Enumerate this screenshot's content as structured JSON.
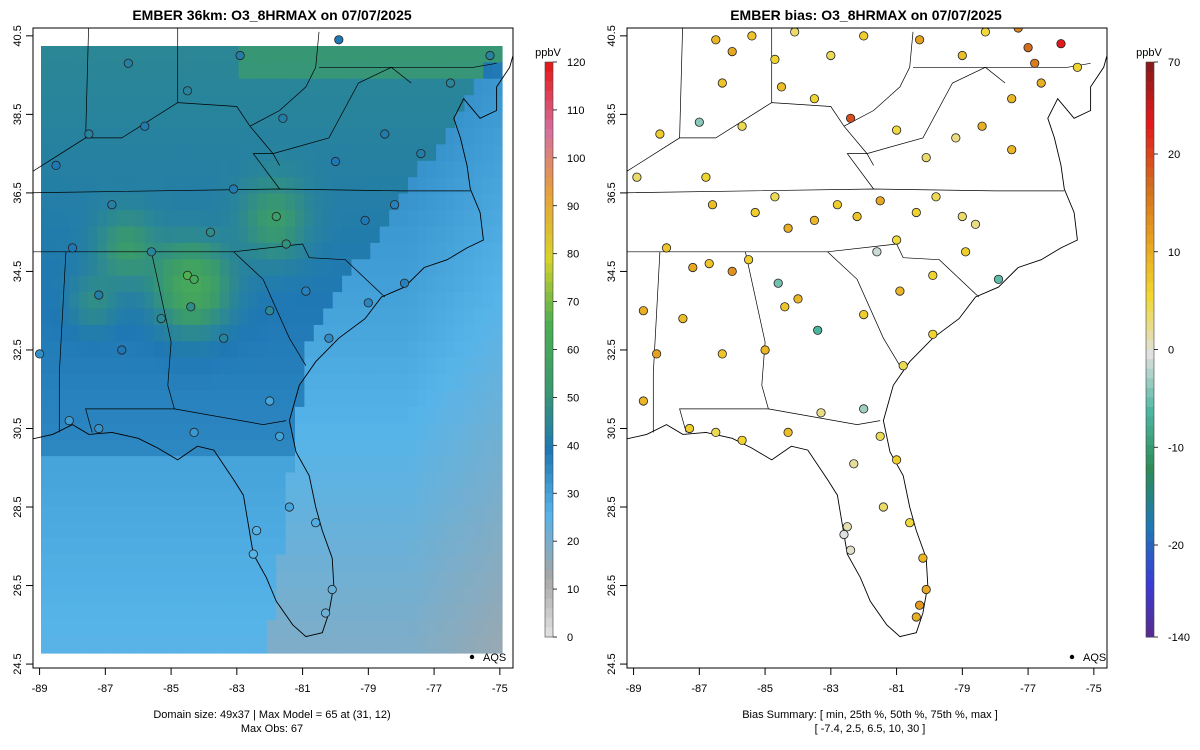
{
  "left_panel": {
    "title": "EMBER 36km: O3_8HRMAX on 07/07/2025",
    "colorbar_unit": "ppbV",
    "colorbar_ticks": [
      "0",
      "10",
      "20",
      "30",
      "40",
      "50",
      "60",
      "70",
      "80",
      "90",
      "100",
      "110",
      "120"
    ],
    "legend_label": "AQS",
    "footer_line1": "Domain size: 49x37 | Max Model = 65 at (31, 12)",
    "footer_line2": "Max Obs: 67"
  },
  "right_panel": {
    "title": "EMBER bias: O3_8HRMAX on 07/07/2025",
    "colorbar_unit": "ppbV",
    "colorbar_ticks": [
      "-140",
      "-20",
      "-10",
      "0",
      "10",
      "20",
      "70"
    ],
    "legend_label": "AQS",
    "footer_line1": "Bias Summary: [ min, 25th %, 50th %, 75th %, max ]",
    "footer_line2": "[ -7.4,   2.5,   6.5,   10,   30 ]"
  },
  "chart_data": [
    {
      "type": "heatmap",
      "title": "EMBER 36km: O3_8HRMAX on 07/07/2025",
      "x_ticks": [
        "-89",
        "-87",
        "-85",
        "-83",
        "-81",
        "-79",
        "-77",
        "-75"
      ],
      "y_ticks": [
        "24.5",
        "26.5",
        "28.5",
        "30.5",
        "32.5",
        "34.5",
        "36.5",
        "38.5",
        "40.5"
      ],
      "xlim": [
        -89.2,
        -74.6
      ],
      "ylim": [
        24.4,
        40.7
      ],
      "colorbar_range": [
        0,
        120
      ],
      "grid": false,
      "legend_position": "bottom-right",
      "colors": {
        "scale": [
          "#e8e8e8",
          "#a6a6a6",
          "#56b4e9",
          "#1f78b4",
          "#3a9b6c",
          "#4caf50",
          "#d6d22a",
          "#e8a23a",
          "#d66f9f",
          "#e31a1c"
        ],
        "ocean": "#5aa3d8"
      },
      "stations": [
        {
          "lon": -84.5,
          "lat": 34.4,
          "value": 67
        },
        {
          "lon": -84.3,
          "lat": 34.3,
          "value": 62
        },
        {
          "lon": -81.8,
          "lat": 35.9,
          "value": 55
        },
        {
          "lon": -81.5,
          "lat": 35.2,
          "value": 50
        },
        {
          "lon": -83.8,
          "lat": 35.5,
          "value": 48
        },
        {
          "lon": -85.6,
          "lat": 35.0,
          "value": 45
        },
        {
          "lon": -87.2,
          "lat": 33.9,
          "value": 42
        },
        {
          "lon": -84.4,
          "lat": 33.6,
          "value": 48
        },
        {
          "lon": -86.5,
          "lat": 32.5,
          "value": 40
        },
        {
          "lon": -80.9,
          "lat": 34.0,
          "value": 38
        },
        {
          "lon": -79.1,
          "lat": 35.8,
          "value": 40
        },
        {
          "lon": -78.2,
          "lat": 36.2,
          "value": 38
        },
        {
          "lon": -77.4,
          "lat": 37.5,
          "value": 42
        },
        {
          "lon": -76.5,
          "lat": 39.3,
          "value": 45
        },
        {
          "lon": -75.3,
          "lat": 40.0,
          "value": 44
        },
        {
          "lon": -79.9,
          "lat": 40.4,
          "value": 40
        },
        {
          "lon": -82.9,
          "lat": 40.0,
          "value": 42
        },
        {
          "lon": -84.5,
          "lat": 39.1,
          "value": 44
        },
        {
          "lon": -85.8,
          "lat": 38.2,
          "value": 41
        },
        {
          "lon": -86.8,
          "lat": 36.2,
          "value": 43
        },
        {
          "lon": -88.0,
          "lat": 35.1,
          "value": 40
        },
        {
          "lon": -89.0,
          "lat": 32.4,
          "value": 35
        },
        {
          "lon": -88.1,
          "lat": 30.7,
          "value": 32
        },
        {
          "lon": -87.2,
          "lat": 30.5,
          "value": 34
        },
        {
          "lon": -84.3,
          "lat": 30.4,
          "value": 33
        },
        {
          "lon": -82.0,
          "lat": 31.2,
          "value": 30
        },
        {
          "lon": -81.7,
          "lat": 30.3,
          "value": 31
        },
        {
          "lon": -81.4,
          "lat": 28.5,
          "value": 30
        },
        {
          "lon": -80.6,
          "lat": 28.1,
          "value": 28
        },
        {
          "lon": -82.4,
          "lat": 27.9,
          "value": 27
        },
        {
          "lon": -82.5,
          "lat": 27.3,
          "value": 26
        },
        {
          "lon": -80.1,
          "lat": 26.4,
          "value": 24
        },
        {
          "lon": -80.3,
          "lat": 25.8,
          "value": 23
        },
        {
          "lon": -80.2,
          "lat": 32.8,
          "value": 36
        },
        {
          "lon": -79.0,
          "lat": 33.7,
          "value": 37
        },
        {
          "lon": -77.9,
          "lat": 34.2,
          "value": 38
        },
        {
          "lon": -86.3,
          "lat": 39.8,
          "value": 43
        },
        {
          "lon": -88.5,
          "lat": 37.2,
          "value": 40
        },
        {
          "lon": -87.5,
          "lat": 38.0,
          "value": 44
        },
        {
          "lon": -81.6,
          "lat": 38.4,
          "value": 42
        },
        {
          "lon": -80.0,
          "lat": 37.3,
          "value": 40
        },
        {
          "lon": -78.5,
          "lat": 38.0,
          "value": 41
        },
        {
          "lon": -83.1,
          "lat": 36.6,
          "value": 41
        },
        {
          "lon": -85.3,
          "lat": 33.3,
          "value": 46
        },
        {
          "lon": -83.4,
          "lat": 32.8,
          "value": 44
        },
        {
          "lon": -82.0,
          "lat": 33.5,
          "value": 46
        }
      ]
    },
    {
      "type": "scatter",
      "title": "EMBER bias: O3_8HRMAX on 07/07/2025",
      "x_ticks": [
        "-89",
        "-87",
        "-85",
        "-83",
        "-81",
        "-79",
        "-77",
        "-75"
      ],
      "y_ticks": [
        "24.5",
        "26.5",
        "28.5",
        "30.5",
        "32.5",
        "34.5",
        "36.5",
        "38.5",
        "40.5"
      ],
      "xlim": [
        -89.2,
        -74.6
      ],
      "ylim": [
        24.4,
        40.7
      ],
      "colorbar_range": [
        -140,
        70
      ],
      "grid": false,
      "legend_position": "bottom-right",
      "colors": {
        "scale": [
          "#5b2a86",
          "#3b3bd6",
          "#1f78b4",
          "#2e8b57",
          "#4db6a0",
          "#e0e0e0",
          "#f0d830",
          "#e6a020",
          "#d2691e",
          "#e31a1c",
          "#8b1a1a"
        ]
      },
      "points": [
        {
          "lon": -86.5,
          "lat": 40.4,
          "bias": 12
        },
        {
          "lon": -86.0,
          "lat": 40.1,
          "bias": 14
        },
        {
          "lon": -85.4,
          "lat": 40.5,
          "bias": 10
        },
        {
          "lon": -84.7,
          "lat": 39.9,
          "bias": 8
        },
        {
          "lon": -84.1,
          "lat": 40.6,
          "bias": 5
        },
        {
          "lon": -83.0,
          "lat": 40.0,
          "bias": 6
        },
        {
          "lon": -82.0,
          "lat": 40.5,
          "bias": 9
        },
        {
          "lon": -80.3,
          "lat": 40.4,
          "bias": 15
        },
        {
          "lon": -79.0,
          "lat": 40.0,
          "bias": 11
        },
        {
          "lon": -78.3,
          "lat": 40.6,
          "bias": 7
        },
        {
          "lon": -77.3,
          "lat": 40.7,
          "bias": 18
        },
        {
          "lon": -76.8,
          "lat": 39.8,
          "bias": 20
        },
        {
          "lon": -76.6,
          "lat": 39.3,
          "bias": 13
        },
        {
          "lon": -77.5,
          "lat": 38.9,
          "bias": 12
        },
        {
          "lon": -88.2,
          "lat": 38.0,
          "bias": 9
        },
        {
          "lon": -87.0,
          "lat": 38.3,
          "bias": -4
        },
        {
          "lon": -86.3,
          "lat": 39.3,
          "bias": 10
        },
        {
          "lon": -85.7,
          "lat": 38.2,
          "bias": 6
        },
        {
          "lon": -84.5,
          "lat": 39.2,
          "bias": 11
        },
        {
          "lon": -83.5,
          "lat": 38.9,
          "bias": 8
        },
        {
          "lon": -82.4,
          "lat": 38.4,
          "bias": 25
        },
        {
          "lon": -81.0,
          "lat": 38.1,
          "bias": 7
        },
        {
          "lon": -80.1,
          "lat": 37.4,
          "bias": 5
        },
        {
          "lon": -79.2,
          "lat": 37.9,
          "bias": 4
        },
        {
          "lon": -78.4,
          "lat": 38.2,
          "bias": 13
        },
        {
          "lon": -77.5,
          "lat": 37.6,
          "bias": 12
        },
        {
          "lon": -86.8,
          "lat": 36.9,
          "bias": 8
        },
        {
          "lon": -86.6,
          "lat": 36.2,
          "bias": 11
        },
        {
          "lon": -85.3,
          "lat": 36.0,
          "bias": 9
        },
        {
          "lon": -84.7,
          "lat": 36.4,
          "bias": 6
        },
        {
          "lon": -84.3,
          "lat": 35.6,
          "bias": 13
        },
        {
          "lon": -83.5,
          "lat": 35.8,
          "bias": 12
        },
        {
          "lon": -82.8,
          "lat": 36.2,
          "bias": 9
        },
        {
          "lon": -82.2,
          "lat": 35.9,
          "bias": 10
        },
        {
          "lon": -81.5,
          "lat": 36.3,
          "bias": 14
        },
        {
          "lon": -80.4,
          "lat": 36.0,
          "bias": 8
        },
        {
          "lon": -79.8,
          "lat": 36.4,
          "bias": 6
        },
        {
          "lon": -79.0,
          "lat": 35.9,
          "bias": 5
        },
        {
          "lon": -78.6,
          "lat": 35.7,
          "bias": 4
        },
        {
          "lon": -81.0,
          "lat": 35.3,
          "bias": 7
        },
        {
          "lon": -81.6,
          "lat": 35.0,
          "bias": -1
        },
        {
          "lon": -80.9,
          "lat": 34.0,
          "bias": 12
        },
        {
          "lon": -79.9,
          "lat": 34.4,
          "bias": 8
        },
        {
          "lon": -78.9,
          "lat": 35.0,
          "bias": 9
        },
        {
          "lon": -77.9,
          "lat": 34.3,
          "bias": -6
        },
        {
          "lon": -87.2,
          "lat": 34.6,
          "bias": 14
        },
        {
          "lon": -86.7,
          "lat": 34.7,
          "bias": 10
        },
        {
          "lon": -85.5,
          "lat": 34.8,
          "bias": 9
        },
        {
          "lon": -84.6,
          "lat": 34.2,
          "bias": -5
        },
        {
          "lon": -84.0,
          "lat": 33.8,
          "bias": 12
        },
        {
          "lon": -84.4,
          "lat": 33.6,
          "bias": 10
        },
        {
          "lon": -83.4,
          "lat": 33.0,
          "bias": -7
        },
        {
          "lon": -82.0,
          "lat": 33.4,
          "bias": 9
        },
        {
          "lon": -86.0,
          "lat": 34.5,
          "bias": 17
        },
        {
          "lon": -87.5,
          "lat": 33.3,
          "bias": 11
        },
        {
          "lon": -88.3,
          "lat": 32.4,
          "bias": 15
        },
        {
          "lon": -86.3,
          "lat": 32.4,
          "bias": 10
        },
        {
          "lon": -85.0,
          "lat": 32.5,
          "bias": 12
        },
        {
          "lon": -88.7,
          "lat": 33.5,
          "bias": 13
        },
        {
          "lon": -87.3,
          "lat": 30.5,
          "bias": 9
        },
        {
          "lon": -86.5,
          "lat": 30.4,
          "bias": 6
        },
        {
          "lon": -85.7,
          "lat": 30.2,
          "bias": 8
        },
        {
          "lon": -84.3,
          "lat": 30.4,
          "bias": 11
        },
        {
          "lon": -83.3,
          "lat": 30.9,
          "bias": 4
        },
        {
          "lon": -82.0,
          "lat": 31.0,
          "bias": -3
        },
        {
          "lon": -81.5,
          "lat": 30.3,
          "bias": 6
        },
        {
          "lon": -81.0,
          "lat": 29.7,
          "bias": 9
        },
        {
          "lon": -82.3,
          "lat": 29.6,
          "bias": 3
        },
        {
          "lon": -82.5,
          "lat": 28.0,
          "bias": 2
        },
        {
          "lon": -82.6,
          "lat": 27.8,
          "bias": 0
        },
        {
          "lon": -82.4,
          "lat": 27.4,
          "bias": 1
        },
        {
          "lon": -81.4,
          "lat": 28.5,
          "bias": 5
        },
        {
          "lon": -80.6,
          "lat": 28.1,
          "bias": 7
        },
        {
          "lon": -80.2,
          "lat": 27.2,
          "bias": 12
        },
        {
          "lon": -80.1,
          "lat": 26.4,
          "bias": 14
        },
        {
          "lon": -80.3,
          "lat": 26.0,
          "bias": 16
        },
        {
          "lon": -80.4,
          "lat": 25.7,
          "bias": 13
        },
        {
          "lon": -80.8,
          "lat": 32.1,
          "bias": 6
        },
        {
          "lon": -79.9,
          "lat": 32.9,
          "bias": 8
        },
        {
          "lon": -88.9,
          "lat": 36.9,
          "bias": 5
        },
        {
          "lon": -88.0,
          "lat": 35.1,
          "bias": 10
        },
        {
          "lon": -88.7,
          "lat": 31.2,
          "bias": 12
        },
        {
          "lon": -75.5,
          "lat": 39.7,
          "bias": 8
        },
        {
          "lon": -76.0,
          "lat": 40.3,
          "bias": 30
        },
        {
          "lon": -77.0,
          "lat": 40.2,
          "bias": 22
        }
      ]
    }
  ]
}
